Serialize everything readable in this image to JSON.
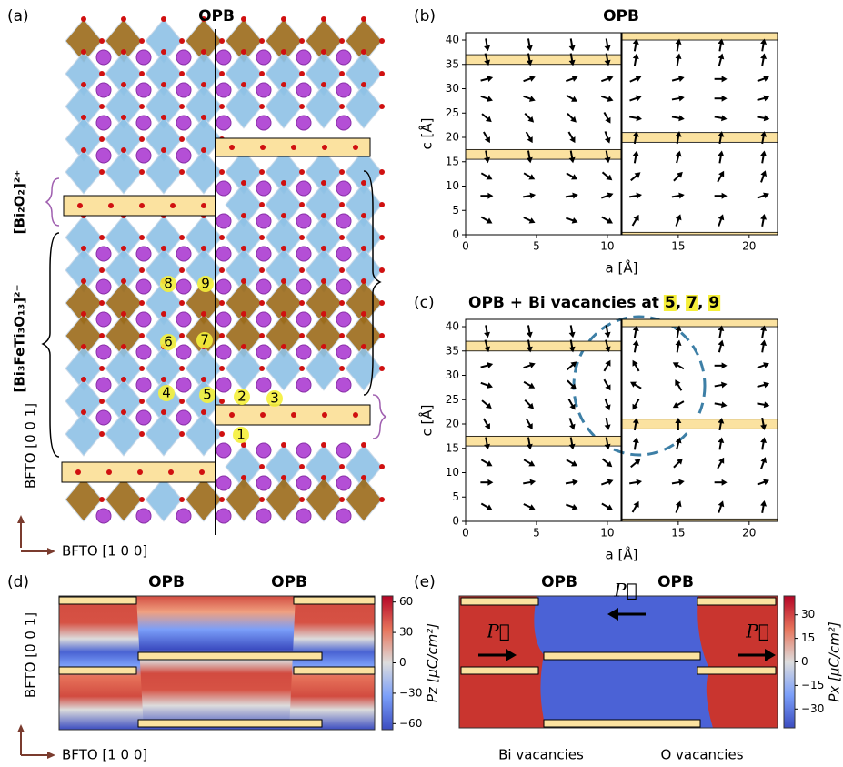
{
  "panel_labels": [
    "(a)",
    "(b)",
    "(c)",
    "(d)",
    "(e)"
  ],
  "panel_a": {
    "title": "OPB",
    "bracket_top": "[Bi₂O₂]²⁺",
    "bracket_bottom": "[Bi₃FeTi₃O₁₃]²⁻",
    "site_labels": [
      "1",
      "2",
      "3",
      "4",
      "5",
      "6",
      "7",
      "8",
      "9"
    ],
    "axis_vertical": "BFTO [0 0 1]",
    "axis_horizontal": "BFTO [1 0 0]"
  },
  "panel_b": {
    "title": "OPB",
    "xlabel": "a [Å]",
    "ylabel": "c [Å]",
    "xlim": [
      0,
      22
    ],
    "ylim": [
      0,
      41.5
    ],
    "xticks": [
      0,
      5,
      10,
      15,
      20
    ],
    "yticks": [
      0,
      5,
      10,
      15,
      20,
      25,
      30,
      35,
      40
    ],
    "boundary_x": 11,
    "x": [
      1.5,
      4.5,
      7.5,
      10,
      12,
      15,
      18,
      21
    ],
    "c": [
      39,
      36,
      32,
      28,
      24,
      20,
      16,
      12,
      8,
      3
    ],
    "angles": [
      [
        -80,
        -80,
        -80,
        -80,
        80,
        80,
        80,
        80
      ],
      [
        -75,
        -80,
        -80,
        -80,
        80,
        80,
        75,
        80
      ],
      [
        15,
        20,
        20,
        20,
        25,
        15,
        0,
        20
      ],
      [
        -20,
        -20,
        -30,
        -20,
        20,
        10,
        0,
        15
      ],
      [
        -40,
        -45,
        -45,
        -60,
        -10,
        -10,
        -10,
        -10
      ],
      [
        -60,
        -60,
        -60,
        -70,
        80,
        80,
        80,
        80
      ],
      [
        -80,
        -80,
        -80,
        -80,
        80,
        75,
        80,
        80
      ],
      [
        -30,
        -30,
        -30,
        -40,
        40,
        45,
        60,
        70
      ],
      [
        0,
        10,
        10,
        20,
        10,
        10,
        0,
        20
      ],
      [
        -30,
        -25,
        -20,
        -30,
        60,
        70,
        70,
        80
      ]
    ]
  },
  "panel_c": {
    "title": "OPB + Bi vacancies at",
    "highlighted": [
      "5",
      "7",
      "9"
    ],
    "separator": ", ",
    "xlabel": "a [Å]",
    "ylabel": "c [Å]",
    "xlim": [
      0,
      22
    ],
    "ylim": [
      0,
      41.5
    ],
    "xticks": [
      0,
      5,
      10,
      15,
      20
    ],
    "yticks": [
      0,
      5,
      10,
      15,
      20,
      25,
      30,
      35,
      40
    ],
    "boundary_x": 11,
    "x": [
      1.5,
      4.5,
      7.5,
      10,
      12,
      15,
      18,
      21
    ],
    "c": [
      39,
      36,
      32,
      28,
      24,
      20,
      16,
      12,
      8,
      3
    ],
    "angles": [
      [
        -80,
        -80,
        -80,
        -80,
        80,
        80,
        80,
        80
      ],
      [
        -75,
        -80,
        -80,
        -75,
        80,
        80,
        75,
        80
      ],
      [
        15,
        20,
        40,
        60,
        120,
        150,
        0,
        20
      ],
      [
        -20,
        -30,
        -45,
        -60,
        150,
        120,
        10,
        15
      ],
      [
        -40,
        -45,
        -60,
        -70,
        -120,
        -150,
        -10,
        -10
      ],
      [
        -60,
        -60,
        -70,
        -80,
        80,
        90,
        80,
        -80
      ],
      [
        -80,
        -80,
        -80,
        -80,
        80,
        75,
        80,
        80
      ],
      [
        -30,
        -30,
        -30,
        -40,
        40,
        45,
        60,
        70
      ],
      [
        0,
        10,
        10,
        20,
        10,
        10,
        0,
        20
      ],
      [
        -30,
        -25,
        -20,
        -30,
        60,
        70,
        70,
        80
      ]
    ]
  },
  "panel_d": {
    "titles": [
      "OPB",
      "OPB"
    ],
    "colorbar_label": "Pz [μC/cm²]",
    "clim": [
      -66,
      66
    ],
    "colorbar_ticks": [
      60,
      30,
      0,
      {
        "value": -30,
        "label": "−30"
      },
      {
        "value": -60,
        "label": "−60"
      }
    ],
    "axis_vertical": "BFTO [0 0 1]",
    "axis_horizontal": "BFTO [1 0 0]"
  },
  "panel_e": {
    "titles": [
      "OPB",
      "OPB"
    ],
    "vector_label": "P⃗",
    "colorbar_label": "Px [μC/cm²]",
    "clim": [
      -42,
      42
    ],
    "colorbar_ticks": [
      30,
      15,
      0,
      {
        "value": -15,
        "label": "−15"
      },
      {
        "value": -30,
        "label": "−30"
      }
    ],
    "bottom_labels": [
      "Bi vacancies",
      "O vacancies"
    ]
  }
}
